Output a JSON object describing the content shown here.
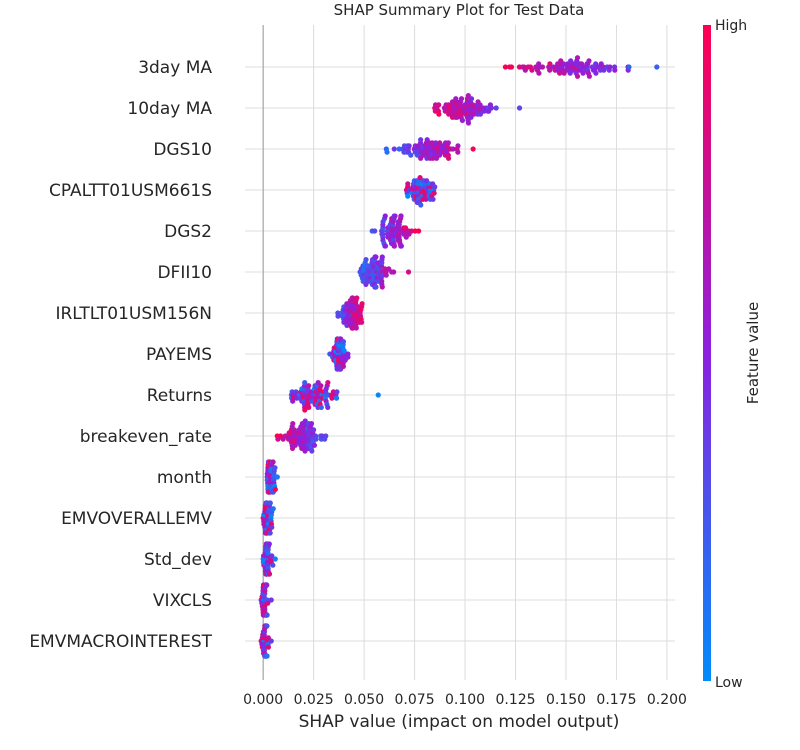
{
  "chart_data": {
    "type": "scatter",
    "subtype": "shap-beeswarm",
    "title": "SHAP Summary Plot for Test Data",
    "xlabel": "SHAP value (impact on model output)",
    "xlim": [
      -0.009,
      0.204
    ],
    "xticks": [
      0.0,
      0.025,
      0.05,
      0.075,
      0.1,
      0.125,
      0.15,
      0.175,
      0.2
    ],
    "xtick_labels": [
      "0.000",
      "0.025",
      "0.050",
      "0.075",
      "0.100",
      "0.125",
      "0.150",
      "0.175",
      "0.200"
    ],
    "grid": true,
    "colorbar": {
      "label": "Feature value",
      "high_label": "High",
      "low_label": "Low",
      "low_color": "#008bfb",
      "mid_color": "#8c21e0",
      "high_color": "#ff0051"
    },
    "features": [
      {
        "name": "3day MA",
        "min": 0.12,
        "max": 0.195,
        "center": 0.151,
        "spread": 0.013,
        "count": 90,
        "color_trend": -1
      },
      {
        "name": "10day MA",
        "min": 0.085,
        "max": 0.127,
        "center": 0.099,
        "spread": 0.007,
        "count": 85,
        "color_trend": -1
      },
      {
        "name": "DGS10",
        "min": 0.061,
        "max": 0.104,
        "center": 0.082,
        "spread": 0.007,
        "count": 80,
        "color_trend": 1
      },
      {
        "name": "CPALTT01USM661S",
        "min": 0.071,
        "max": 0.085,
        "center": 0.078,
        "spread": 0.004,
        "count": 60,
        "color_trend": 0
      },
      {
        "name": "DGS2",
        "min": 0.054,
        "max": 0.077,
        "center": 0.065,
        "spread": 0.004,
        "count": 75,
        "color_trend": 1
      },
      {
        "name": "DFII10",
        "min": 0.048,
        "max": 0.072,
        "center": 0.055,
        "spread": 0.004,
        "count": 75,
        "color_trend": 1
      },
      {
        "name": "IRLTLT01USM156N",
        "min": 0.037,
        "max": 0.049,
        "center": 0.043,
        "spread": 0.003,
        "count": 65,
        "color_trend": 1
      },
      {
        "name": "PAYEMS",
        "min": 0.033,
        "max": 0.042,
        "center": 0.037,
        "spread": 0.002,
        "count": 55,
        "color_trend": 0
      },
      {
        "name": "Returns",
        "min": 0.014,
        "max": 0.057,
        "center": 0.025,
        "spread": 0.007,
        "count": 80,
        "color_trend": 0
      },
      {
        "name": "breakeven_rate",
        "min": 0.007,
        "max": 0.031,
        "center": 0.019,
        "spread": 0.005,
        "count": 80,
        "color_trend": -1
      },
      {
        "name": "month",
        "min": 0.002,
        "max": 0.007,
        "center": 0.004,
        "spread": 0.0013,
        "count": 45,
        "color_trend": 0
      },
      {
        "name": "EMVOVERALLEMV",
        "min": 0.0,
        "max": 0.005,
        "center": 0.002,
        "spread": 0.001,
        "count": 45,
        "color_trend": 0
      },
      {
        "name": "Std_dev",
        "min": 0.0,
        "max": 0.006,
        "center": 0.002,
        "spread": 0.001,
        "count": 45,
        "color_trend": 0
      },
      {
        "name": "VIXCLS",
        "min": -0.001,
        "max": 0.004,
        "center": 0.001,
        "spread": 0.0009,
        "count": 45,
        "color_trend": 0
      },
      {
        "name": "EMVMACROINTEREST",
        "min": -0.001,
        "max": 0.004,
        "center": 0.001,
        "spread": 0.0009,
        "count": 45,
        "color_trend": 0
      }
    ]
  }
}
